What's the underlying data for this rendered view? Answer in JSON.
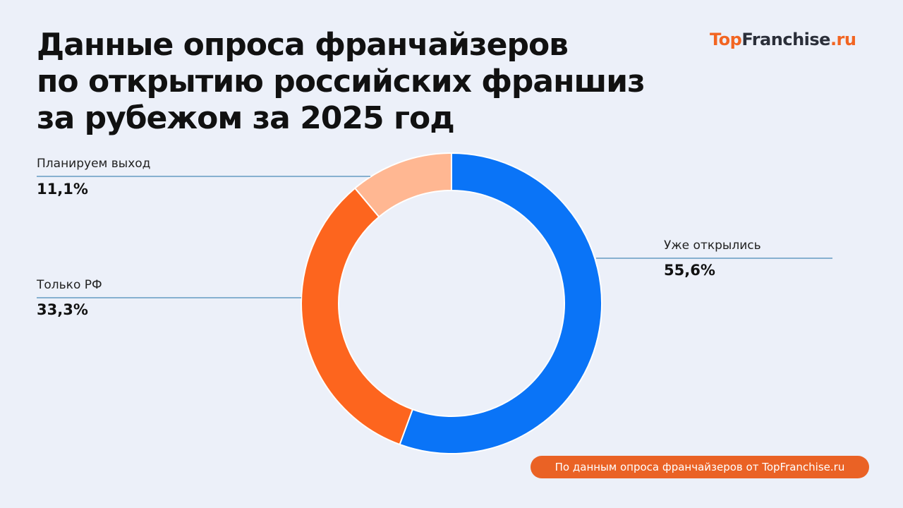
{
  "title": {
    "lines": [
      "Данные опроса франчайзеров",
      "по открытию российских франшиз",
      "за рубежом за 2025 год"
    ]
  },
  "logo": {
    "text": "TopFranchise.ru",
    "part1": "Top",
    "part2": "Franchise",
    "part3": ".ru"
  },
  "source_badge": "По данным опроса франчайзеров от TopFranchise.ru",
  "colors": {
    "background": "#ecf0f9",
    "leader_line": "#1f6fa8",
    "badge": "#ea6225"
  },
  "chart_data": {
    "type": "pie",
    "donut": true,
    "start": "top",
    "direction": "clockwise",
    "slices": [
      {
        "label": "Уже открылись",
        "value": 55.6,
        "display": "55,6%",
        "color": "#0a74f7"
      },
      {
        "label": "Только РФ",
        "value": 33.3,
        "display": "33,3%",
        "color": "#fd651e"
      },
      {
        "label": "Планируем выход",
        "value": 11.1,
        "display": "11,1%",
        "color": "#ffb792"
      }
    ]
  }
}
